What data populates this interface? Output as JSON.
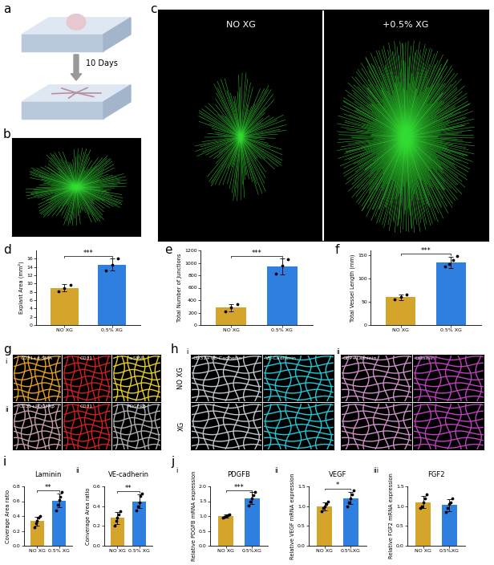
{
  "chart_data": [
    {
      "type": "bar",
      "panel": "d",
      "ylabel": "Explant Area (mm²)",
      "categories": [
        "NO XG",
        "0.5% XG"
      ],
      "values": [
        9.0,
        14.6
      ],
      "errors": [
        0.8,
        1.5
      ],
      "points": [
        [
          8.2,
          9.0,
          9.6
        ],
        [
          13.2,
          14.5,
          16.0
        ]
      ],
      "colors": [
        "#D4A52A",
        "#2F7FE0"
      ],
      "ylim": [
        0,
        18
      ],
      "yticks": [
        0,
        2,
        4,
        6,
        8,
        10,
        12,
        14,
        16
      ],
      "significance": "***"
    },
    {
      "type": "bar",
      "panel": "e",
      "ylabel": "Total Number of Junctions",
      "categories": [
        "NO XG",
        "0.5% XG"
      ],
      "values": [
        280,
        940
      ],
      "errors": [
        60,
        130
      ],
      "points": [
        [
          220,
          280,
          340
        ],
        [
          820,
          950,
          1060
        ]
      ],
      "colors": [
        "#D4A52A",
        "#2F7FE0"
      ],
      "ylim": [
        0,
        1200
      ],
      "yticks": [
        0,
        200,
        400,
        600,
        800,
        1000,
        1200
      ],
      "significance": "***"
    },
    {
      "type": "bar",
      "panel": "f",
      "ylabel": "Total Vessel Length (mm)",
      "categories": [
        "NO XG",
        "0.5% XG"
      ],
      "values": [
        60,
        135
      ],
      "errors": [
        6,
        12
      ],
      "points": [
        [
          55,
          60,
          66
        ],
        [
          125,
          130,
          140,
          148
        ]
      ],
      "colors": [
        "#D4A52A",
        "#2F7FE0"
      ],
      "ylim": [
        0,
        160
      ],
      "yticks": [
        0,
        50,
        100,
        150
      ],
      "significance": "***"
    },
    {
      "type": "bar",
      "panel": "i",
      "subpanel": "i",
      "title": "Laminin",
      "ylabel": "Coverage Area ratio",
      "categories": [
        "NO XG",
        "0.5% XG"
      ],
      "values": [
        0.33,
        0.61
      ],
      "errors": [
        0.06,
        0.09
      ],
      "points": [
        [
          0.25,
          0.3,
          0.33,
          0.38,
          0.4
        ],
        [
          0.48,
          0.55,
          0.62,
          0.66,
          0.72
        ]
      ],
      "colors": [
        "#D4A52A",
        "#2F7FE0"
      ],
      "ylim": [
        0,
        0.8
      ],
      "yticks": [
        {
          "value": 0,
          "label": "0.0"
        },
        0.2,
        0.4,
        0.6,
        0.8
      ],
      "significance": "**"
    },
    {
      "type": "bar",
      "panel": "i",
      "subpanel": "ii",
      "title": "VE-cadherin",
      "ylabel": "Converage Area ratio",
      "categories": [
        "NO XG",
        "0.5% XG"
      ],
      "values": [
        0.28,
        0.45
      ],
      "errors": [
        0.06,
        0.07
      ],
      "points": [
        [
          0.2,
          0.25,
          0.28,
          0.32,
          0.35
        ],
        [
          0.36,
          0.4,
          0.44,
          0.5,
          0.53
        ]
      ],
      "colors": [
        "#D4A52A",
        "#2F7FE0"
      ],
      "ylim": [
        0,
        0.6
      ],
      "yticks": [
        {
          "value": 0,
          "label": "0.0"
        },
        0.2,
        0.4,
        0.6
      ],
      "significance": "**"
    },
    {
      "type": "bar",
      "panel": "j",
      "subpanel": "i",
      "title": "PDGFB",
      "ylabel": "Relative PDGFB mRNA expression",
      "categories": [
        "NO XG",
        "0.5%XG"
      ],
      "values": [
        1.0,
        1.6
      ],
      "errors": [
        0.05,
        0.2
      ],
      "points": [
        [
          0.95,
          0.98,
          1.0,
          1.02,
          1.05
        ],
        [
          1.35,
          1.5,
          1.6,
          1.7,
          1.8
        ]
      ],
      "colors": [
        "#D4A52A",
        "#2F7FE0"
      ],
      "ylim": [
        0,
        2.0
      ],
      "yticks": [
        {
          "value": 0,
          "label": "0.0"
        },
        0.5,
        {
          "value": 1,
          "label": "1.0"
        },
        1.5,
        {
          "value": 2,
          "label": "2.0"
        }
      ],
      "significance": "***"
    },
    {
      "type": "bar",
      "panel": "j",
      "subpanel": "ii",
      "title": "VEGF",
      "ylabel": "Relative VEGF mRNA expression",
      "categories": [
        "NO XG",
        "0.5%XG"
      ],
      "values": [
        1.0,
        1.2
      ],
      "errors": [
        0.1,
        0.15
      ],
      "points": [
        [
          0.88,
          0.95,
          1.0,
          1.05,
          1.12
        ],
        [
          1.0,
          1.1,
          1.2,
          1.3,
          1.4
        ]
      ],
      "colors": [
        "#D4A52A",
        "#2F7FE0"
      ],
      "ylim": [
        0,
        1.5
      ],
      "yticks": [
        {
          "value": 0,
          "label": "0.0"
        },
        0.5,
        {
          "value": 1,
          "label": "1.0"
        },
        1.5
      ],
      "significance": "*"
    },
    {
      "type": "bar",
      "panel": "j",
      "subpanel": "iii",
      "title": "FGF2",
      "ylabel": "Relative FGF2 mRNA expression",
      "categories": [
        "NO XG",
        "0.5%XG"
      ],
      "values": [
        1.1,
        1.03
      ],
      "errors": [
        0.15,
        0.15
      ],
      "points": [
        [
          0.95,
          1.0,
          1.1,
          1.2,
          1.3
        ],
        [
          0.85,
          0.95,
          1.05,
          1.1,
          1.2
        ]
      ],
      "colors": [
        "#D4A52A",
        "#2F7FE0"
      ],
      "ylim": [
        0,
        1.5
      ],
      "yticks": [
        {
          "value": 0,
          "label": "0.0"
        },
        0.5,
        {
          "value": 1,
          "label": "1.0"
        },
        1.5
      ]
    }
  ],
  "image_panels": [
    {
      "panel": "a",
      "arrow_text": "10 Days"
    },
    {
      "panel": "b"
    },
    {
      "panel": "c",
      "conditions": [
        "NO XG",
        "+0.5% XG"
      ]
    },
    {
      "panel": "g",
      "rows": [
        {
          "row": "i",
          "channels": [
            "CD31+α-SMA",
            "CD31",
            "α-SMA"
          ]
        },
        {
          "row": "ii",
          "channels": [
            "CD31+PDGFRβ",
            "CD31",
            "PDGFRβ"
          ]
        }
      ]
    },
    {
      "panel": "h",
      "groups": [
        {
          "group": "i",
          "channels": [
            "CD31+VE-Cadherin",
            "VE-Cadherin"
          ]
        },
        {
          "group": "ii",
          "channels": [
            "GFP+Laminin",
            "Laminin"
          ]
        }
      ],
      "rows": [
        "NO XG",
        "XG"
      ]
    }
  ]
}
